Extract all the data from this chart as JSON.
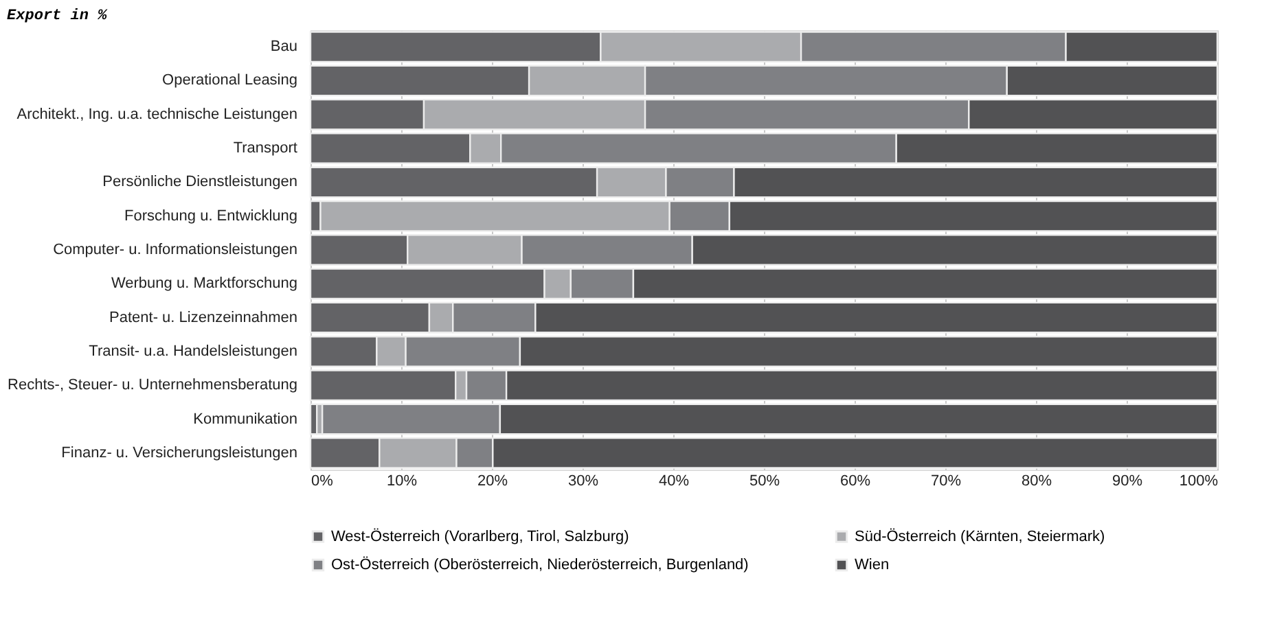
{
  "chart_data": {
    "type": "bar",
    "orientation": "horizontal",
    "stacked": true,
    "title": "Export in %",
    "categories": [
      "Bau",
      "Operational Leasing",
      "Architekt., Ing. u.a. technische Leistungen",
      "Transport",
      "Persönliche Dienstleistungen",
      "Forschung u. Entwicklung",
      "Computer- u. Informationsleistungen",
      "Werbung u. Marktforschung",
      "Patent- u. Lizenzeinnahmen ",
      "Transit- u.a. Handelsleistungen",
      "Rechts-, Steuer- u. Unternehmensberatung",
      "Kommunikation",
      "Finanz- u. Versicherungsleistungen"
    ],
    "series": [
      {
        "name": "West-Österreich (Vorarlberg, Tirol, Salzburg)",
        "color": "#636366",
        "values": [
          32.0,
          24.1,
          12.5,
          17.6,
          31.6,
          1.1,
          10.7,
          25.8,
          13.1,
          7.3,
          16.0,
          0.7,
          7.6
        ]
      },
      {
        "name": "Süd-Österreich (Kärnten, Steiermark)",
        "color": "#aaabae",
        "values": [
          22.1,
          12.8,
          24.4,
          3.4,
          7.6,
          38.5,
          12.6,
          2.9,
          2.6,
          3.2,
          1.2,
          0.6,
          8.5
        ]
      },
      {
        "name": "Ost-Österreich (Oberösterreich, Niederösterreich, Burgenland)",
        "color": "#7f8084",
        "values": [
          29.2,
          39.9,
          35.7,
          43.6,
          7.5,
          6.6,
          18.8,
          6.9,
          9.1,
          12.6,
          4.4,
          19.6,
          4.0
        ]
      },
      {
        "name": "Wien",
        "color": "#525254",
        "values": [
          16.7,
          23.2,
          27.4,
          35.4,
          53.3,
          53.8,
          57.9,
          64.4,
          75.2,
          76.9,
          78.4,
          79.1,
          79.9
        ]
      }
    ],
    "xlim": [
      0,
      100
    ],
    "xticks": [
      {
        "value": 0,
        "label": "0%"
      },
      {
        "value": 10,
        "label": "10%"
      },
      {
        "value": 20,
        "label": "20%"
      },
      {
        "value": 30,
        "label": "30%"
      },
      {
        "value": 40,
        "label": "40%"
      },
      {
        "value": 50,
        "label": "50%"
      },
      {
        "value": 60,
        "label": "60%"
      },
      {
        "value": 70,
        "label": "70%"
      },
      {
        "value": 80,
        "label": "80%"
      },
      {
        "value": 90,
        "label": "90%"
      },
      {
        "value": 100,
        "label": "100%"
      }
    ],
    "grid": "x",
    "legend": "bottom"
  }
}
